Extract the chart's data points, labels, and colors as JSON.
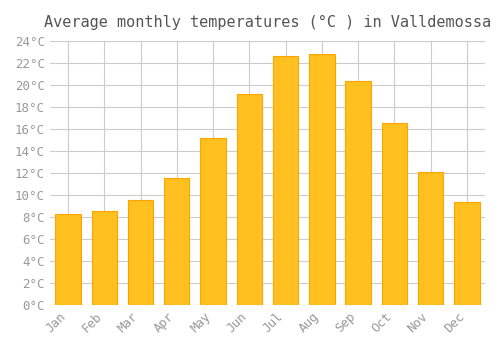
{
  "title": "Average monthly temperatures (°C ) in Valldemossa",
  "months": [
    "Jan",
    "Feb",
    "Mar",
    "Apr",
    "May",
    "Jun",
    "Jul",
    "Aug",
    "Sep",
    "Oct",
    "Nov",
    "Dec"
  ],
  "values": [
    8.3,
    8.5,
    9.5,
    11.5,
    15.2,
    19.2,
    22.6,
    22.8,
    20.4,
    16.5,
    12.1,
    9.4
  ],
  "bar_color": "#FFC020",
  "bar_edge_color": "#FFA500",
  "background_color": "#FFFFFF",
  "grid_color": "#CCCCCC",
  "text_color": "#999999",
  "ylim": [
    0,
    24
  ],
  "yticks": [
    0,
    2,
    4,
    6,
    8,
    10,
    12,
    14,
    16,
    18,
    20,
    22,
    24
  ],
  "title_fontsize": 11,
  "tick_fontsize": 9,
  "font_family": "monospace"
}
